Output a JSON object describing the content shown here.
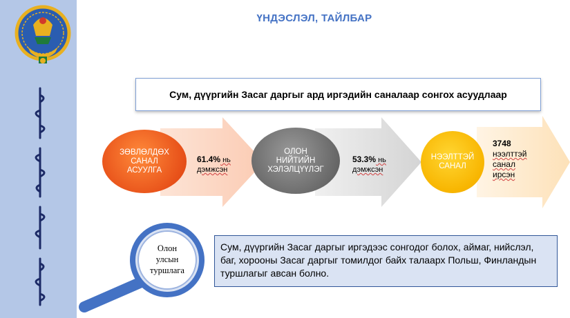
{
  "header": {
    "title": "ҮНДЭСЛЭЛ, ТАЙЛБАР"
  },
  "question": {
    "text": "Сум, дүүргийн Засаг даргыг ард иргэдийн саналаар сонгох асуудлаар"
  },
  "flow": {
    "step1": {
      "line1": "ЗӨВЛӨЛДӨХ",
      "line2": "САНАЛ",
      "line3": "АСУУЛГА",
      "percent": "61.4%",
      "percent_suffix": " нь",
      "caption": "дэмжсэн"
    },
    "step2": {
      "line1": "ОЛОН",
      "line2": "НИЙТИЙН",
      "line3": "ХЭЛЭЛЦҮҮЛЭГ",
      "percent": "53.3%",
      "percent_suffix": " нь",
      "caption": "дэмжсэн"
    },
    "step3": {
      "line1": "НЭЭЛТТЭЙ",
      "line2": "САНАЛ",
      "count": "3748",
      "cap1": "нээлттэй",
      "cap2": "санал",
      "cap3": "ирсэн"
    }
  },
  "experience": {
    "line1": "Олон",
    "line2": "улсын",
    "line3": "туршлага"
  },
  "note": {
    "text": "Сум, дүүргийн Засаг даргыг иргэдээс сонгодог болох, аймаг, нийслэл, баг, хорооны Засаг даргыг томилдог байх талаарх Польш, Финландын туршлагыг авсан болно."
  },
  "colors": {
    "sidebar": "#b4c7e7",
    "title": "#4472c4",
    "orange": "#e8521a",
    "gray": "#6d6d6d",
    "yellow": "#f8b500",
    "note_bg": "#dae3f3",
    "note_border": "#2f5597",
    "magnifier": "#4472c4"
  }
}
